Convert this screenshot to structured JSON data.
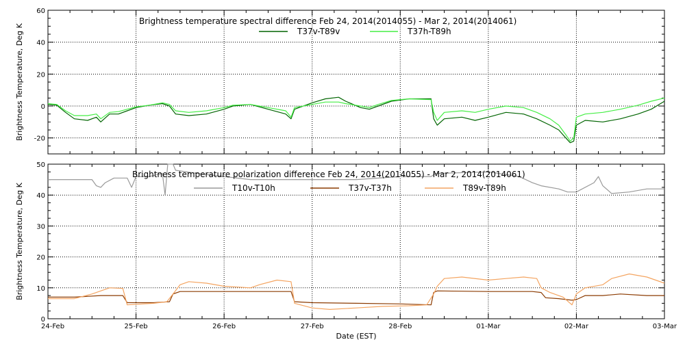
{
  "x_axis": {
    "label": "Date (EST)",
    "ticks": [
      "24-Feb",
      "25-Feb",
      "26-Feb",
      "27-Feb",
      "28-Feb",
      "01-Mar",
      "02-Mar",
      "03-Mar"
    ]
  },
  "chart_data": [
    {
      "type": "line",
      "title": "Brightness temperature spectral difference    Feb 24, 2014(2014055) - Mar  2, 2014(2014061)",
      "xlabel": "",
      "ylabel": "Brightness Temperature, Deg K",
      "xlim": [
        0,
        7
      ],
      "ylim": [
        -30,
        60
      ],
      "yticks": [
        -20,
        0,
        20,
        40,
        60
      ],
      "grid": true,
      "legend_position": "top-center",
      "series": [
        {
          "name": "T37v-T89v",
          "color": "#006400",
          "points": [
            [
              0,
              1
            ],
            [
              0.1,
              0.5
            ],
            [
              0.2,
              -4
            ],
            [
              0.3,
              -8
            ],
            [
              0.45,
              -9
            ],
            [
              0.55,
              -7
            ],
            [
              0.6,
              -10
            ],
            [
              0.7,
              -5
            ],
            [
              0.8,
              -5
            ],
            [
              0.9,
              -3
            ],
            [
              1.0,
              -1
            ],
            [
              1.15,
              0.5
            ],
            [
              1.3,
              1.5
            ],
            [
              1.38,
              0
            ],
            [
              1.45,
              -5
            ],
            [
              1.6,
              -6
            ],
            [
              1.8,
              -5
            ],
            [
              2.0,
              -2
            ],
            [
              2.1,
              0
            ],
            [
              2.3,
              1
            ],
            [
              2.5,
              -2
            ],
            [
              2.7,
              -5
            ],
            [
              2.76,
              -8
            ],
            [
              2.8,
              -2
            ],
            [
              3.0,
              2
            ],
            [
              3.15,
              4.5
            ],
            [
              3.3,
              5.5
            ],
            [
              3.38,
              3
            ],
            [
              3.55,
              -1
            ],
            [
              3.65,
              -2
            ],
            [
              3.75,
              0
            ],
            [
              3.9,
              3
            ],
            [
              4.1,
              4.5
            ],
            [
              4.35,
              4.5
            ],
            [
              4.38,
              -8
            ],
            [
              4.42,
              -12
            ],
            [
              4.5,
              -8
            ],
            [
              4.7,
              -7
            ],
            [
              4.85,
              -9
            ],
            [
              5.0,
              -7
            ],
            [
              5.2,
              -4
            ],
            [
              5.4,
              -5
            ],
            [
              5.55,
              -8
            ],
            [
              5.7,
              -12
            ],
            [
              5.8,
              -15
            ],
            [
              5.88,
              -20
            ],
            [
              5.93,
              -23
            ],
            [
              5.97,
              -22
            ],
            [
              6.0,
              -12
            ],
            [
              6.1,
              -9
            ],
            [
              6.3,
              -10
            ],
            [
              6.5,
              -8
            ],
            [
              6.7,
              -5
            ],
            [
              6.85,
              -2
            ],
            [
              7.0,
              3
            ]
          ]
        },
        {
          "name": "T37h-T89h",
          "color": "#44ee44",
          "points": [
            [
              0,
              1.5
            ],
            [
              0.1,
              1
            ],
            [
              0.2,
              -3
            ],
            [
              0.3,
              -6
            ],
            [
              0.45,
              -6
            ],
            [
              0.55,
              -5
            ],
            [
              0.6,
              -8
            ],
            [
              0.7,
              -4
            ],
            [
              0.8,
              -3.5
            ],
            [
              0.9,
              -2
            ],
            [
              1.0,
              -0.5
            ],
            [
              1.15,
              0.5
            ],
            [
              1.3,
              2
            ],
            [
              1.38,
              1
            ],
            [
              1.45,
              -3
            ],
            [
              1.6,
              -4
            ],
            [
              1.8,
              -3
            ],
            [
              2.0,
              -1
            ],
            [
              2.1,
              0.5
            ],
            [
              2.3,
              1
            ],
            [
              2.5,
              -1
            ],
            [
              2.7,
              -3
            ],
            [
              2.76,
              -7
            ],
            [
              2.8,
              -1
            ],
            [
              3.0,
              1
            ],
            [
              3.15,
              2.5
            ],
            [
              3.3,
              2.5
            ],
            [
              3.38,
              1.5
            ],
            [
              3.55,
              0
            ],
            [
              3.65,
              -1
            ],
            [
              3.75,
              1
            ],
            [
              3.9,
              3.5
            ],
            [
              4.1,
              4.5
            ],
            [
              4.35,
              4
            ],
            [
              4.38,
              -4
            ],
            [
              4.42,
              -9
            ],
            [
              4.5,
              -4
            ],
            [
              4.7,
              -3
            ],
            [
              4.85,
              -4
            ],
            [
              5.0,
              -2
            ],
            [
              5.2,
              0
            ],
            [
              5.4,
              -1
            ],
            [
              5.55,
              -4
            ],
            [
              5.7,
              -8
            ],
            [
              5.8,
              -12
            ],
            [
              5.88,
              -18
            ],
            [
              5.93,
              -22
            ],
            [
              5.97,
              -20
            ],
            [
              6.0,
              -7
            ],
            [
              6.1,
              -5
            ],
            [
              6.3,
              -4
            ],
            [
              6.5,
              -2
            ],
            [
              6.7,
              0.5
            ],
            [
              6.85,
              3
            ],
            [
              7.0,
              5
            ]
          ]
        }
      ]
    },
    {
      "type": "line",
      "title": "Brightness temperature polarization difference    Feb 24, 2014(2014055) - Mar  2, 2014(2014061)",
      "xlabel": "Date (EST)",
      "ylabel": "Brightness Temperature, Deg K",
      "xlim": [
        0,
        7
      ],
      "ylim": [
        0,
        50
      ],
      "yticks": [
        0,
        10,
        20,
        30,
        40,
        50
      ],
      "grid": true,
      "legend_position": "top-center",
      "series": [
        {
          "name": "T10v-T10h",
          "color": "#999999",
          "points": [
            [
              0,
              45
            ],
            [
              0.3,
              45
            ],
            [
              0.5,
              45
            ],
            [
              0.55,
              43
            ],
            [
              0.6,
              42.5
            ],
            [
              0.65,
              44
            ],
            [
              0.75,
              45.5
            ],
            [
              0.9,
              45.5
            ],
            [
              0.95,
              42.5
            ],
            [
              1.0,
              46
            ],
            [
              1.15,
              46
            ],
            [
              1.3,
              47
            ],
            [
              1.33,
              40
            ],
            [
              1.36,
              50
            ],
            [
              1.42,
              50
            ],
            [
              1.45,
              48
            ],
            [
              1.7,
              47
            ],
            [
              2.0,
              46
            ],
            [
              2.3,
              45
            ],
            [
              2.6,
              45
            ],
            [
              3.0,
              45
            ],
            [
              3.5,
              45
            ],
            [
              4.0,
              46
            ],
            [
              4.35,
              46
            ],
            [
              4.4,
              47
            ],
            [
              5.0,
              47.5
            ],
            [
              5.35,
              46
            ],
            [
              5.5,
              44
            ],
            [
              5.6,
              43
            ],
            [
              5.8,
              42
            ],
            [
              5.9,
              41
            ],
            [
              6.0,
              41
            ],
            [
              6.2,
              44
            ],
            [
              6.25,
              46
            ],
            [
              6.3,
              43
            ],
            [
              6.4,
              40.5
            ],
            [
              6.6,
              41
            ],
            [
              6.8,
              42
            ],
            [
              7.0,
              42
            ]
          ]
        },
        {
          "name": "T37v-T37h",
          "color": "#8b3a00",
          "points": [
            [
              0,
              7
            ],
            [
              0.3,
              7
            ],
            [
              0.6,
              7.5
            ],
            [
              0.85,
              7.5
            ],
            [
              0.9,
              5.2
            ],
            [
              1.2,
              5.2
            ],
            [
              1.38,
              5.5
            ],
            [
              1.42,
              8
            ],
            [
              1.5,
              8.8
            ],
            [
              2.0,
              8.8
            ],
            [
              2.5,
              8.8
            ],
            [
              2.76,
              8.8
            ],
            [
              2.8,
              5.5
            ],
            [
              3.0,
              5.2
            ],
            [
              3.5,
              5
            ],
            [
              4.0,
              4.8
            ],
            [
              4.35,
              4.5
            ],
            [
              4.38,
              8.5
            ],
            [
              4.42,
              9
            ],
            [
              5.0,
              8.8
            ],
            [
              5.5,
              8.8
            ],
            [
              5.6,
              8.5
            ],
            [
              5.65,
              6.8
            ],
            [
              5.8,
              6.5
            ],
            [
              5.95,
              6
            ],
            [
              6.0,
              6.2
            ],
            [
              6.1,
              7.5
            ],
            [
              6.3,
              7.5
            ],
            [
              6.5,
              8
            ],
            [
              6.8,
              7.5
            ],
            [
              7.0,
              7.5
            ]
          ]
        },
        {
          "name": "T89v-T89h",
          "color": "#f4a460",
          "points": [
            [
              0,
              6.5
            ],
            [
              0.3,
              6.5
            ],
            [
              0.5,
              8
            ],
            [
              0.6,
              9
            ],
            [
              0.7,
              10
            ],
            [
              0.85,
              9.8
            ],
            [
              0.9,
              4.5
            ],
            [
              1.2,
              5
            ],
            [
              1.35,
              5.5
            ],
            [
              1.42,
              8
            ],
            [
              1.5,
              11
            ],
            [
              1.6,
              12
            ],
            [
              1.8,
              11.5
            ],
            [
              2.0,
              10.5
            ],
            [
              2.3,
              10
            ],
            [
              2.4,
              11
            ],
            [
              2.6,
              12.5
            ],
            [
              2.76,
              12
            ],
            [
              2.8,
              5
            ],
            [
              3.0,
              3.5
            ],
            [
              3.2,
              3
            ],
            [
              3.5,
              3.5
            ],
            [
              3.8,
              4
            ],
            [
              4.1,
              4.2
            ],
            [
              4.3,
              4.5
            ],
            [
              4.38,
              8
            ],
            [
              4.42,
              10.5
            ],
            [
              4.5,
              13
            ],
            [
              4.7,
              13.5
            ],
            [
              5.0,
              12.5
            ],
            [
              5.2,
              13
            ],
            [
              5.4,
              13.5
            ],
            [
              5.55,
              13
            ],
            [
              5.6,
              10
            ],
            [
              5.7,
              8.5
            ],
            [
              5.85,
              7
            ],
            [
              5.95,
              4.5
            ],
            [
              6.0,
              8
            ],
            [
              6.1,
              10
            ],
            [
              6.3,
              11
            ],
            [
              6.4,
              13
            ],
            [
              6.6,
              14.5
            ],
            [
              6.8,
              13.5
            ],
            [
              7.0,
              11.5
            ]
          ]
        }
      ]
    }
  ]
}
